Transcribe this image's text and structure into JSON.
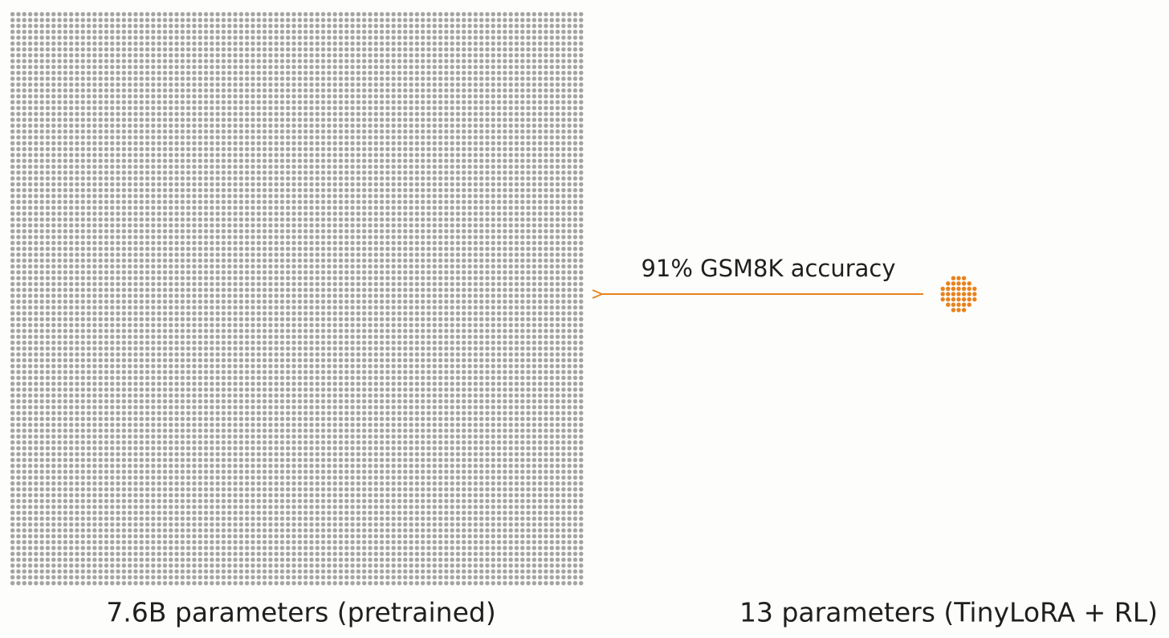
{
  "annotation": {
    "label": "91% GSM8K accuracy"
  },
  "left_panel": {
    "caption": "7.6B parameters (pretrained)"
  },
  "right_panel": {
    "caption": "13 parameters (TinyLoRA + RL)"
  }
}
